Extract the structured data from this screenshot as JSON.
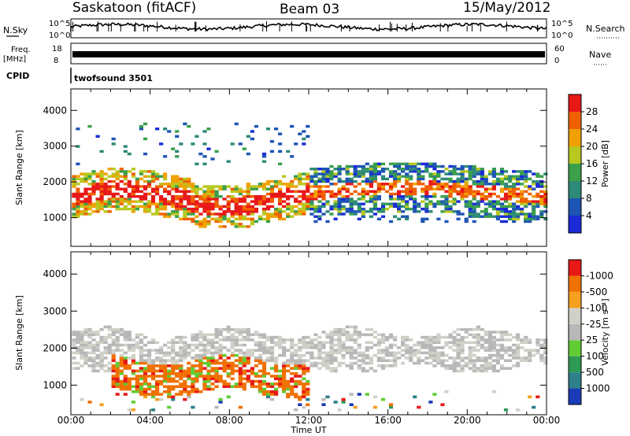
{
  "header": {
    "station": "Saskatoon (fitACF)",
    "beam": "Beam 03",
    "date": "15/May/2012"
  },
  "status_panels": {
    "nsky_label": "N.Sky",
    "nsky_ticks": [
      "10^5",
      "10^0"
    ],
    "nsearch_label": "N.Search",
    "nsearch_ticks": [
      "10^5",
      "10^0"
    ],
    "freq_label": "Freq.",
    "freq_unit": "[MHz]",
    "freq_ticks": [
      "18",
      "8"
    ],
    "nave_label": "Nave",
    "nave_ticks": [
      "60",
      "0"
    ],
    "cpid_label": "CPID",
    "cpid_value": "twofsound 3501"
  },
  "chart_data": [
    {
      "type": "heatmap",
      "name": "Power",
      "ylabel": "Slant Range [km]",
      "xlabel": "",
      "ylim": [
        200,
        4600
      ],
      "yticks": [
        1000,
        2000,
        3000,
        4000
      ],
      "xlim_hours": [
        0,
        24
      ],
      "colorbar": {
        "label": "Power [dB]",
        "ticks": [
          "4",
          "8",
          "12",
          "16",
          "20",
          "24",
          "28"
        ],
        "colors": [
          "#1a2ad8",
          "#1e55b4",
          "#2e8a78",
          "#3aa04a",
          "#b8c820",
          "#f0a000",
          "#f06000",
          "#e81818"
        ]
      },
      "features": [
        {
          "time_range": [
            "00:00",
            "12:00"
          ],
          "range_km": [
            900,
            2300
          ],
          "level": "high",
          "note": "strong band near 1500 km"
        },
        {
          "time_range": [
            "12:00",
            "24:00"
          ],
          "range_km": [
            1300,
            2700
          ],
          "level": "medium",
          "note": "band near 1700 km"
        }
      ]
    },
    {
      "type": "heatmap",
      "name": "Velocity",
      "ylabel": "Slant Range [km]",
      "xlabel": "Time UT",
      "ylim": [
        200,
        4600
      ],
      "yticks": [
        1000,
        2000,
        3000,
        4000
      ],
      "xticks": [
        "00:00",
        "04:00",
        "08:00",
        "12:00",
        "16:00",
        "20:00",
        "00:00"
      ],
      "colorbar": {
        "label": "Velocity [m s⁻¹]",
        "ticks": [
          "1000",
          "500",
          "100",
          "25",
          "-25",
          "-100",
          "-500",
          "-1000"
        ],
        "colors": [
          "#1a3ab8",
          "#2d7f8a",
          "#2d9a55",
          "#62cc33",
          "#b8b8b8",
          "#d0d0c8",
          "#f6a020",
          "#f07000",
          "#e81818"
        ]
      },
      "features": [
        {
          "time_range": [
            "02:00",
            "12:00"
          ],
          "range_km": [
            600,
            1900
          ],
          "velocity": "negative",
          "note": "orange away-flow"
        },
        {
          "time_range": [
            "00:00",
            "24:00"
          ],
          "range_km": [
            1400,
            2700
          ],
          "velocity": "near zero",
          "note": "grey ground scatter"
        }
      ]
    }
  ]
}
